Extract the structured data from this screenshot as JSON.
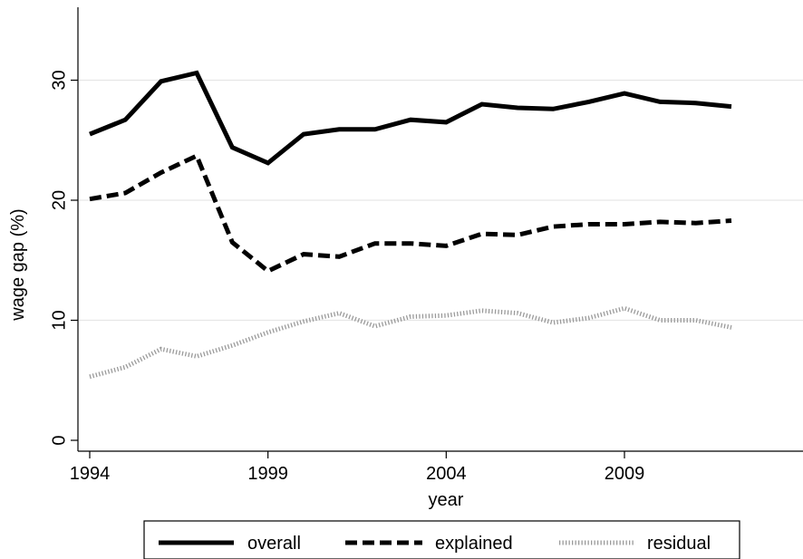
{
  "chart_data": {
    "type": "line",
    "title": "",
    "xlabel": "year",
    "ylabel": "wage gap (%)",
    "xlim": [
      1994,
      2012
    ],
    "ylim": [
      0,
      35
    ],
    "x_ticks": [
      1994,
      1999,
      2004,
      2009
    ],
    "y_ticks": [
      0,
      10,
      20,
      30
    ],
    "x_tick_labels": [
      "1994",
      "1999",
      "2004",
      "2009"
    ],
    "y_tick_labels": [
      "0",
      "10",
      "20",
      "30"
    ],
    "grid": true,
    "legend_position": "bottom",
    "x": [
      1994,
      1995,
      1996,
      1997,
      1998,
      1999,
      2000,
      2001,
      2002,
      2003,
      2004,
      2005,
      2006,
      2007,
      2008,
      2009,
      2010,
      2011,
      2012
    ],
    "series": [
      {
        "name": "overall",
        "style": "solid",
        "color": "#000000",
        "values": [
          25.5,
          26.7,
          29.9,
          30.6,
          24.4,
          23.1,
          25.5,
          25.9,
          25.9,
          26.7,
          26.5,
          28.0,
          27.7,
          27.6,
          28.2,
          28.9,
          28.2,
          28.1,
          27.8
        ]
      },
      {
        "name": "explained",
        "style": "dashed",
        "color": "#000000",
        "values": [
          20.1,
          20.6,
          22.3,
          23.7,
          16.5,
          14.1,
          15.5,
          15.3,
          16.4,
          16.4,
          16.2,
          17.2,
          17.1,
          17.8,
          18.0,
          18.0,
          18.2,
          18.1,
          18.3
        ]
      },
      {
        "name": "residual",
        "style": "dotted",
        "color": "#9a9a9a",
        "values": [
          5.3,
          6.1,
          7.6,
          7.0,
          7.9,
          9.0,
          9.9,
          10.6,
          9.5,
          10.3,
          10.4,
          10.8,
          10.6,
          9.8,
          10.2,
          11.0,
          10.0,
          10.0,
          9.4
        ]
      }
    ]
  }
}
